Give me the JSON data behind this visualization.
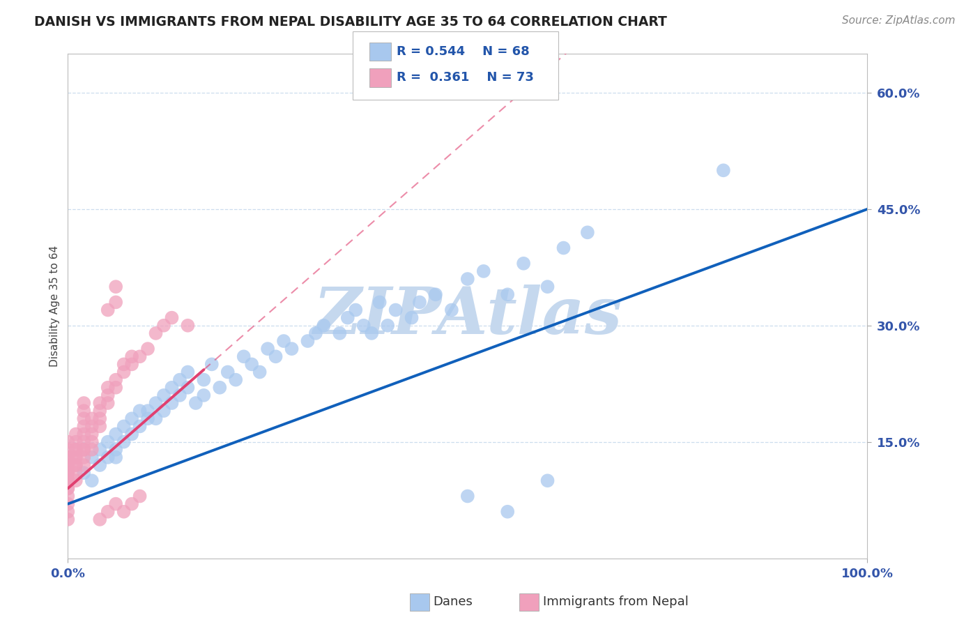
{
  "title": "DANISH VS IMMIGRANTS FROM NEPAL DISABILITY AGE 35 TO 64 CORRELATION CHART",
  "source": "Source: ZipAtlas.com",
  "ylabel": "Disability Age 35 to 64",
  "r_danes": 0.544,
  "n_danes": 68,
  "r_nepal": 0.361,
  "n_nepal": 73,
  "xlim": [
    0,
    1.0
  ],
  "ylim": [
    0,
    0.65
  ],
  "right_yticks": [
    0.15,
    0.3,
    0.45,
    0.6
  ],
  "right_yticklabels": [
    "15.0%",
    "30.0%",
    "45.0%",
    "60.0%"
  ],
  "color_danes": "#A8C8EE",
  "color_nepal": "#F0A0BC",
  "line_color_danes": "#1060BB",
  "line_color_nepal": "#E04070",
  "watermark": "ZIPAtlas",
  "watermark_color": "#C5D8EE",
  "danes_x": [
    0.02,
    0.03,
    0.03,
    0.04,
    0.04,
    0.05,
    0.05,
    0.06,
    0.06,
    0.06,
    0.07,
    0.07,
    0.08,
    0.08,
    0.09,
    0.09,
    0.1,
    0.1,
    0.11,
    0.11,
    0.12,
    0.12,
    0.13,
    0.13,
    0.14,
    0.14,
    0.15,
    0.15,
    0.16,
    0.17,
    0.17,
    0.18,
    0.19,
    0.2,
    0.21,
    0.22,
    0.23,
    0.24,
    0.25,
    0.26,
    0.27,
    0.28,
    0.3,
    0.31,
    0.32,
    0.34,
    0.35,
    0.36,
    0.37,
    0.38,
    0.39,
    0.4,
    0.41,
    0.43,
    0.44,
    0.46,
    0.48,
    0.5,
    0.52,
    0.55,
    0.57,
    0.6,
    0.62,
    0.65,
    0.5,
    0.55,
    0.6,
    0.82
  ],
  "danes_y": [
    0.11,
    0.1,
    0.13,
    0.12,
    0.14,
    0.13,
    0.15,
    0.14,
    0.16,
    0.13,
    0.15,
    0.17,
    0.16,
    0.18,
    0.19,
    0.17,
    0.18,
    0.19,
    0.2,
    0.18,
    0.21,
    0.19,
    0.22,
    0.2,
    0.23,
    0.21,
    0.24,
    0.22,
    0.2,
    0.21,
    0.23,
    0.25,
    0.22,
    0.24,
    0.23,
    0.26,
    0.25,
    0.24,
    0.27,
    0.26,
    0.28,
    0.27,
    0.28,
    0.29,
    0.3,
    0.29,
    0.31,
    0.32,
    0.3,
    0.29,
    0.33,
    0.3,
    0.32,
    0.31,
    0.33,
    0.34,
    0.32,
    0.36,
    0.37,
    0.34,
    0.38,
    0.35,
    0.4,
    0.42,
    0.08,
    0.06,
    0.1,
    0.5
  ],
  "nepal_x": [
    0.0,
    0.0,
    0.0,
    0.0,
    0.0,
    0.0,
    0.0,
    0.0,
    0.0,
    0.0,
    0.0,
    0.0,
    0.0,
    0.0,
    0.0,
    0.0,
    0.0,
    0.0,
    0.0,
    0.0,
    0.01,
    0.01,
    0.01,
    0.01,
    0.01,
    0.01,
    0.01,
    0.01,
    0.01,
    0.01,
    0.02,
    0.02,
    0.02,
    0.02,
    0.02,
    0.02,
    0.02,
    0.02,
    0.02,
    0.02,
    0.03,
    0.03,
    0.03,
    0.03,
    0.03,
    0.04,
    0.04,
    0.04,
    0.04,
    0.05,
    0.05,
    0.05,
    0.06,
    0.06,
    0.07,
    0.07,
    0.08,
    0.08,
    0.09,
    0.1,
    0.11,
    0.12,
    0.13,
    0.05,
    0.06,
    0.06,
    0.07,
    0.08,
    0.09,
    0.04,
    0.05,
    0.06,
    0.15
  ],
  "nepal_y": [
    0.05,
    0.06,
    0.07,
    0.08,
    0.09,
    0.1,
    0.11,
    0.12,
    0.1,
    0.09,
    0.13,
    0.11,
    0.14,
    0.12,
    0.15,
    0.1,
    0.13,
    0.11,
    0.12,
    0.1,
    0.1,
    0.11,
    0.12,
    0.13,
    0.14,
    0.15,
    0.16,
    0.13,
    0.14,
    0.12,
    0.12,
    0.13,
    0.14,
    0.15,
    0.16,
    0.14,
    0.17,
    0.18,
    0.19,
    0.2,
    0.14,
    0.15,
    0.16,
    0.17,
    0.18,
    0.17,
    0.18,
    0.19,
    0.2,
    0.2,
    0.21,
    0.22,
    0.22,
    0.23,
    0.24,
    0.25,
    0.26,
    0.25,
    0.26,
    0.27,
    0.29,
    0.3,
    0.31,
    0.32,
    0.33,
    0.35,
    0.06,
    0.07,
    0.08,
    0.05,
    0.06,
    0.07,
    0.3
  ]
}
